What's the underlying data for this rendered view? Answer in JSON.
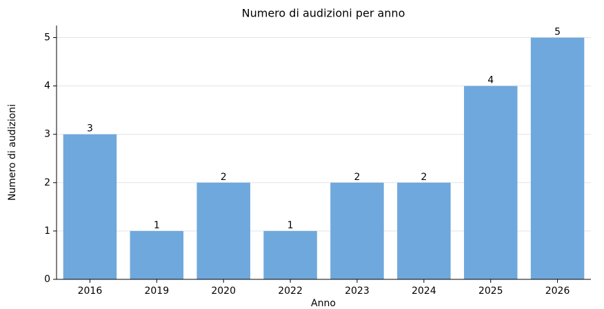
{
  "chart_data": {
    "type": "bar",
    "title": "Numero di audizioni per anno",
    "x_label": "Anno",
    "y_label": "Numero di audizioni",
    "categories": [
      "2016",
      "2019",
      "2020",
      "2022",
      "2023",
      "2024",
      "2025",
      "2026"
    ],
    "values": [
      3,
      1,
      2,
      1,
      2,
      2,
      4,
      5
    ],
    "color": "#6fa8dc",
    "ylim": [
      0,
      5.25
    ],
    "yticks": [
      0,
      1,
      2,
      3,
      4,
      5
    ],
    "grid": true
  }
}
